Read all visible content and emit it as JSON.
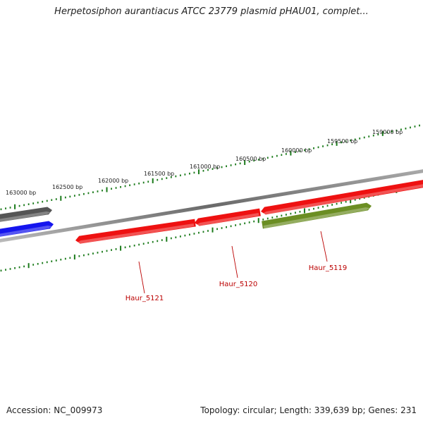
{
  "title": "Herpetosiphon aurantiacus ATCC 23779 plasmid pHAU01, complet...",
  "footer": {
    "accession": "Accession: NC_009973",
    "summary": "Topology: circular; Length: 339,639 bp; Genes: 231"
  },
  "colors": {
    "backbone": "#777777",
    "tick": "#1a7a1a",
    "gene_label": "#bb0000",
    "forward_gene": "#ee1111",
    "reverse_gene": "#ee1111",
    "olive_gene": "#6b8e23",
    "blue_gene": "#1515ee",
    "gray_gene": "#555555"
  },
  "scale_labels": [
    "163000 bp",
    "162500 bp",
    "162000 bp",
    "161500 bp",
    "161000 bp",
    "160500 bp",
    "160000 bp",
    "159500 bp",
    "159000 bp"
  ],
  "genes": [
    {
      "name": "Haur_5121",
      "color": "forward_gene"
    },
    {
      "name": "Haur_5120",
      "color": "forward_gene"
    },
    {
      "name": "Haur_5119",
      "color": "olive_gene"
    },
    {
      "name": "",
      "color": "forward_gene"
    },
    {
      "name": "",
      "color": "blue_gene"
    },
    {
      "name": "",
      "color": "gray_gene"
    }
  ]
}
